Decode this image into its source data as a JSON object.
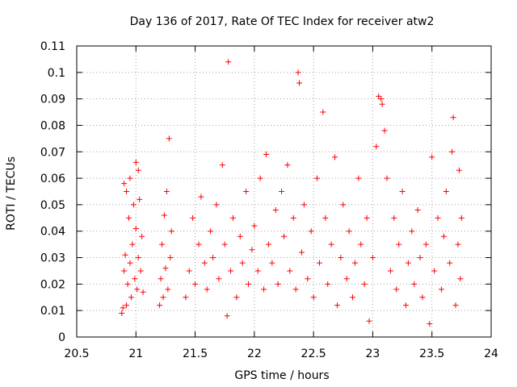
{
  "chart_data": {
    "type": "scatter",
    "title": "Day 136 of 2017, Rate Of TEC Index for receiver atw2",
    "xlabel": "GPS time / hours",
    "ylabel": "ROTI / TECUs",
    "xlim": [
      20.5,
      24
    ],
    "ylim": [
      0,
      0.11
    ],
    "x_ticks": [
      20.5,
      21,
      21.5,
      22,
      22.5,
      23,
      23.5,
      24
    ],
    "x_tick_labels": [
      "20.5",
      "21",
      "21.5",
      "22",
      "22.5",
      "23",
      "23.5",
      "24"
    ],
    "y_ticks": [
      0,
      0.01,
      0.02,
      0.03,
      0.04,
      0.05,
      0.06,
      0.07,
      0.08,
      0.09,
      0.1,
      0.11
    ],
    "y_tick_labels": [
      "0",
      "0.01",
      "0.02",
      "0.03",
      "0.04",
      "0.05",
      "0.06",
      "0.07",
      "0.08",
      "0.09",
      "0.1",
      "0.11"
    ],
    "grid": true,
    "marker": "+",
    "color": "#ff0000",
    "series": [
      {
        "name": "ROTI",
        "points": [
          [
            20.88,
            0.009
          ],
          [
            20.89,
            0.011
          ],
          [
            20.9,
            0.025
          ],
          [
            20.9,
            0.058
          ],
          [
            20.91,
            0.031
          ],
          [
            20.92,
            0.012
          ],
          [
            20.92,
            0.055
          ],
          [
            20.93,
            0.02
          ],
          [
            20.94,
            0.045
          ],
          [
            20.95,
            0.028
          ],
          [
            20.95,
            0.06
          ],
          [
            20.96,
            0.015
          ],
          [
            20.97,
            0.035
          ],
          [
            20.98,
            0.05
          ],
          [
            20.99,
            0.022
          ],
          [
            21.0,
            0.066
          ],
          [
            21.0,
            0.041
          ],
          [
            21.01,
            0.018
          ],
          [
            21.02,
            0.063
          ],
          [
            21.02,
            0.03
          ],
          [
            21.03,
            0.052
          ],
          [
            21.04,
            0.025
          ],
          [
            21.05,
            0.038
          ],
          [
            21.06,
            0.017
          ],
          [
            21.2,
            0.012
          ],
          [
            21.21,
            0.022
          ],
          [
            21.22,
            0.035
          ],
          [
            21.23,
            0.015
          ],
          [
            21.24,
            0.046
          ],
          [
            21.25,
            0.026
          ],
          [
            21.26,
            0.055
          ],
          [
            21.27,
            0.018
          ],
          [
            21.28,
            0.075
          ],
          [
            21.29,
            0.03
          ],
          [
            21.3,
            0.04
          ],
          [
            21.42,
            0.015
          ],
          [
            21.45,
            0.025
          ],
          [
            21.48,
            0.045
          ],
          [
            21.5,
            0.02
          ],
          [
            21.53,
            0.035
          ],
          [
            21.55,
            0.053
          ],
          [
            21.58,
            0.028
          ],
          [
            21.6,
            0.018
          ],
          [
            21.63,
            0.04
          ],
          [
            21.65,
            0.03
          ],
          [
            21.68,
            0.05
          ],
          [
            21.7,
            0.022
          ],
          [
            21.73,
            0.065
          ],
          [
            21.75,
            0.035
          ],
          [
            21.77,
            0.008
          ],
          [
            21.78,
            0.104
          ],
          [
            21.8,
            0.025
          ],
          [
            21.82,
            0.045
          ],
          [
            21.85,
            0.015
          ],
          [
            21.88,
            0.038
          ],
          [
            21.9,
            0.028
          ],
          [
            21.93,
            0.055
          ],
          [
            21.95,
            0.02
          ],
          [
            21.98,
            0.033
          ],
          [
            22.0,
            0.042
          ],
          [
            22.03,
            0.025
          ],
          [
            22.05,
            0.06
          ],
          [
            22.08,
            0.018
          ],
          [
            22.1,
            0.069
          ],
          [
            22.12,
            0.035
          ],
          [
            22.15,
            0.028
          ],
          [
            22.18,
            0.048
          ],
          [
            22.2,
            0.02
          ],
          [
            22.23,
            0.055
          ],
          [
            22.25,
            0.038
          ],
          [
            22.28,
            0.065
          ],
          [
            22.3,
            0.025
          ],
          [
            22.33,
            0.045
          ],
          [
            22.35,
            0.018
          ],
          [
            22.37,
            0.1
          ],
          [
            22.38,
            0.096
          ],
          [
            22.4,
            0.032
          ],
          [
            22.42,
            0.05
          ],
          [
            22.45,
            0.022
          ],
          [
            22.48,
            0.04
          ],
          [
            22.5,
            0.015
          ],
          [
            22.53,
            0.06
          ],
          [
            22.55,
            0.028
          ],
          [
            22.58,
            0.085
          ],
          [
            22.6,
            0.045
          ],
          [
            22.62,
            0.02
          ],
          [
            22.65,
            0.035
          ],
          [
            22.68,
            0.068
          ],
          [
            22.7,
            0.012
          ],
          [
            22.73,
            0.03
          ],
          [
            22.75,
            0.05
          ],
          [
            22.78,
            0.022
          ],
          [
            22.8,
            0.04
          ],
          [
            22.83,
            0.015
          ],
          [
            22.85,
            0.028
          ],
          [
            22.88,
            0.06
          ],
          [
            22.9,
            0.035
          ],
          [
            22.93,
            0.02
          ],
          [
            22.95,
            0.045
          ],
          [
            22.97,
            0.006
          ],
          [
            23.0,
            0.03
          ],
          [
            23.03,
            0.072
          ],
          [
            23.05,
            0.091
          ],
          [
            23.07,
            0.09
          ],
          [
            23.08,
            0.088
          ],
          [
            23.1,
            0.078
          ],
          [
            23.12,
            0.06
          ],
          [
            23.15,
            0.025
          ],
          [
            23.18,
            0.045
          ],
          [
            23.2,
            0.018
          ],
          [
            23.22,
            0.035
          ],
          [
            23.25,
            0.055
          ],
          [
            23.28,
            0.012
          ],
          [
            23.3,
            0.028
          ],
          [
            23.33,
            0.04
          ],
          [
            23.35,
            0.02
          ],
          [
            23.38,
            0.048
          ],
          [
            23.4,
            0.03
          ],
          [
            23.42,
            0.015
          ],
          [
            23.45,
            0.035
          ],
          [
            23.48,
            0.005
          ],
          [
            23.5,
            0.068
          ],
          [
            23.52,
            0.025
          ],
          [
            23.55,
            0.045
          ],
          [
            23.58,
            0.018
          ],
          [
            23.6,
            0.038
          ],
          [
            23.62,
            0.055
          ],
          [
            23.65,
            0.028
          ],
          [
            23.67,
            0.07
          ],
          [
            23.68,
            0.083
          ],
          [
            23.7,
            0.012
          ],
          [
            23.72,
            0.035
          ],
          [
            23.73,
            0.063
          ],
          [
            23.74,
            0.022
          ],
          [
            23.75,
            0.045
          ]
        ]
      }
    ]
  }
}
